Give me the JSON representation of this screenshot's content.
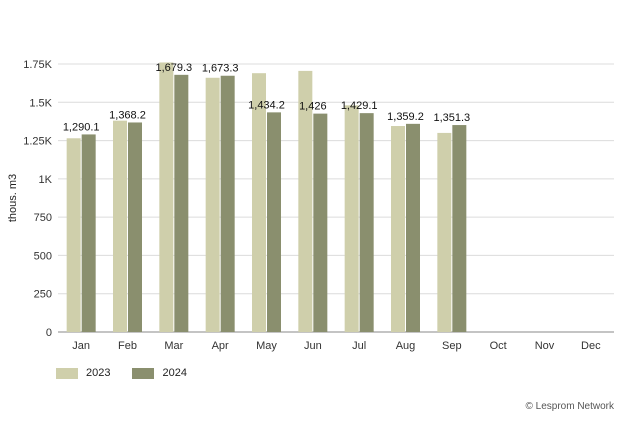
{
  "chart_data": {
    "type": "bar",
    "ylabel": "thous. m3",
    "categories": [
      "Jan",
      "Feb",
      "Mar",
      "Apr",
      "May",
      "Jun",
      "Jul",
      "Aug",
      "Sep",
      "Oct",
      "Nov",
      "Dec"
    ],
    "ylim": [
      0,
      1750
    ],
    "yticks": [
      0,
      250,
      500,
      750,
      1000,
      1250,
      1500,
      1750
    ],
    "ytick_labels": [
      "0",
      "250",
      "500",
      "750",
      "1K",
      "1.25K",
      "1.5K",
      "1.75K"
    ],
    "grid": true,
    "legend_position": "bottom-left",
    "series": [
      {
        "name": "2023",
        "color": "#cfcfab",
        "values": [
          1265,
          1380,
          1760,
          1660,
          1690,
          1705,
          1480,
          1345,
          1300,
          null,
          null,
          null
        ],
        "labels": [
          "",
          "",
          "",
          "",
          "",
          "",
          "",
          "",
          "",
          "",
          "",
          ""
        ]
      },
      {
        "name": "2024",
        "color": "#8a8f6e",
        "values": [
          1290.1,
          1368.2,
          1679.3,
          1673.3,
          1434.2,
          1426,
          1429.1,
          1359.2,
          1351.3,
          null,
          null,
          null
        ],
        "labels": [
          "1,290.1",
          "1,368.2",
          "1,679.3",
          "1,673.3",
          "1,434.2",
          "1,426",
          "1,429.1",
          "1,359.2",
          "1,351.3",
          "",
          "",
          ""
        ]
      }
    ]
  },
  "credit": "© Lesprom Network"
}
